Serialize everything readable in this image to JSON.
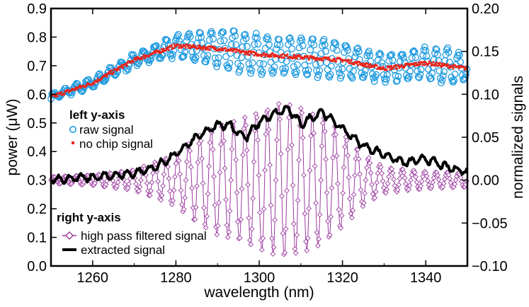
{
  "chart_data": {
    "type": "scatter",
    "xlabel": "wavelength (nm)",
    "ylabel_left": "power (μW)",
    "ylabel_right": "normalized signals",
    "xlim": [
      1250,
      1350
    ],
    "ylim_left": [
      0.0,
      0.9
    ],
    "ylim_right": [
      -0.1,
      0.2
    ],
    "x_ticks": [
      "1260",
      "1280",
      "1300",
      "1320",
      "1340"
    ],
    "y_left_ticks": [
      "0.0",
      "0.1",
      "0.2",
      "0.3",
      "0.4",
      "0.5",
      "0.6",
      "0.7",
      "0.8",
      "0.9"
    ],
    "y_right_ticks": [
      "−0.10",
      "−0.05",
      "0.00",
      "0.05",
      "0.10",
      "0.15",
      "0.20"
    ],
    "grid": false,
    "legend_left": {
      "heading": "left y-axis",
      "placement": "center-left",
      "entries": [
        {
          "label": "raw signal",
          "marker": "open-circle",
          "color": "#1f9ae0"
        },
        {
          "label": "no chip signal",
          "marker": "small-square",
          "color": "#e8261d"
        }
      ]
    },
    "legend_right": {
      "heading": "right y-axis",
      "placement": "bottom-left",
      "entries": [
        {
          "label": "high pass filtered signal",
          "marker": "open-diamond-line",
          "color": "#9b3aa0"
        },
        {
          "label": "extracted signal",
          "marker": "thick-line",
          "color": "#000000"
        }
      ]
    },
    "series": [
      {
        "name": "raw signal",
        "axis": "left",
        "color": "#1f9ae0",
        "envelope": {
          "x": [
            1250,
            1260,
            1270,
            1280,
            1290,
            1300,
            1310,
            1320,
            1330,
            1340,
            1350
          ],
          "y": [
            0.59,
            0.64,
            0.72,
            0.77,
            0.76,
            0.74,
            0.73,
            0.72,
            0.69,
            0.71,
            0.69
          ]
        },
        "oscillation_amplitude": {
          "x": [
            1250,
            1262,
            1275,
            1285,
            1295,
            1305,
            1315,
            1325,
            1335,
            1345,
            1350
          ],
          "y": [
            0.01,
            0.015,
            0.025,
            0.05,
            0.07,
            0.06,
            0.065,
            0.05,
            0.045,
            0.06,
            0.04
          ]
        },
        "oscillation_period_nm": 2.7
      },
      {
        "name": "no chip signal",
        "axis": "left",
        "color": "#e8261d",
        "points": {
          "x": [
            1250,
            1260,
            1270,
            1280,
            1290,
            1300,
            1310,
            1320,
            1330,
            1340,
            1350
          ],
          "y": [
            0.59,
            0.64,
            0.72,
            0.77,
            0.76,
            0.74,
            0.73,
            0.72,
            0.69,
            0.71,
            0.69
          ]
        }
      },
      {
        "name": "high pass filtered signal",
        "axis": "right",
        "color": "#9b3aa0",
        "amplitude": {
          "x": [
            1250,
            1260,
            1270,
            1280,
            1285,
            1290,
            1295,
            1300,
            1305,
            1310,
            1315,
            1320,
            1325,
            1330,
            1340,
            1350
          ],
          "y": [
            0.004,
            0.006,
            0.012,
            0.03,
            0.05,
            0.064,
            0.07,
            0.08,
            0.09,
            0.085,
            0.075,
            0.055,
            0.03,
            0.015,
            0.01,
            0.008
          ]
        },
        "oscillation_period_nm": 2.7
      },
      {
        "name": "extracted signal",
        "axis": "right",
        "color": "#000000",
        "points": {
          "x": [
            1250,
            1260,
            1270,
            1275,
            1280,
            1285,
            1290,
            1293,
            1295,
            1297,
            1300,
            1305,
            1307,
            1310,
            1315,
            1320,
            1325,
            1330,
            1335,
            1340,
            1345,
            1350
          ],
          "y": [
            0.001,
            0.003,
            0.008,
            0.015,
            0.03,
            0.05,
            0.064,
            0.065,
            0.055,
            0.05,
            0.068,
            0.08,
            0.083,
            0.065,
            0.08,
            0.06,
            0.04,
            0.03,
            0.02,
            0.025,
            0.015,
            0.01
          ]
        }
      }
    ]
  }
}
